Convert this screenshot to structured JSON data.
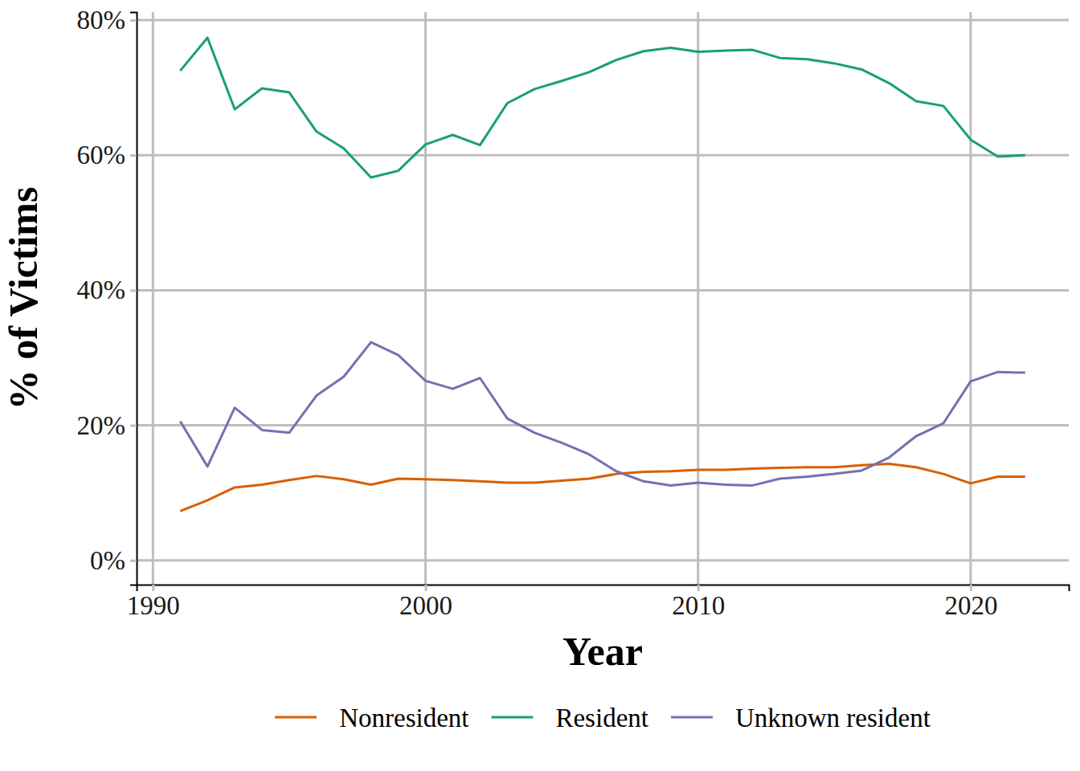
{
  "chart_data": {
    "type": "line",
    "x_label": "Year",
    "y_label": "% of Victims",
    "x": [
      1991,
      1992,
      1993,
      1994,
      1995,
      1996,
      1997,
      1998,
      1999,
      2000,
      2001,
      2002,
      2003,
      2004,
      2005,
      2006,
      2007,
      2008,
      2009,
      2010,
      2011,
      2012,
      2013,
      2014,
      2015,
      2016,
      2017,
      2018,
      2019,
      2020,
      2021,
      2022
    ],
    "series": [
      {
        "name": "Nonresident",
        "color": "#d95f02",
        "values": [
          7.3,
          8.9,
          10.8,
          11.2,
          11.9,
          12.5,
          12.0,
          11.2,
          12.1,
          12.0,
          11.9,
          11.7,
          11.5,
          11.5,
          11.8,
          12.1,
          12.8,
          13.1,
          13.2,
          13.4,
          13.4,
          13.6,
          13.7,
          13.8,
          13.8,
          14.1,
          14.3,
          13.8,
          12.8,
          11.4,
          12.4,
          12.4
        ]
      },
      {
        "name": "Resident",
        "color": "#1b9e77",
        "values": [
          72.5,
          77.4,
          66.8,
          69.9,
          69.3,
          63.5,
          61.0,
          56.7,
          57.7,
          61.6,
          63.0,
          61.5,
          67.7,
          69.8,
          71.0,
          72.3,
          74.1,
          75.4,
          75.9,
          75.3,
          75.5,
          75.6,
          74.4,
          74.2,
          73.6,
          72.7,
          70.7,
          68.0,
          67.3,
          62.3,
          59.8,
          60.0
        ]
      },
      {
        "name": "Unknown resident",
        "color": "#7570b3",
        "values": [
          20.6,
          13.9,
          22.6,
          19.3,
          18.9,
          24.4,
          27.2,
          32.3,
          30.4,
          26.6,
          25.4,
          27.0,
          21.0,
          18.9,
          17.4,
          15.7,
          13.2,
          11.7,
          11.1,
          11.5,
          11.2,
          11.1,
          12.1,
          12.4,
          12.8,
          13.3,
          15.2,
          18.4,
          20.3,
          26.5,
          27.9,
          27.8
        ]
      }
    ],
    "xlim": [
      1989.4,
      2023.6
    ],
    "xticks": [
      1990,
      2000,
      2010,
      2020
    ],
    "ylim": [
      -3.6,
      81.2
    ],
    "yticks": [
      {
        "value": 0,
        "label": "0%"
      },
      {
        "value": 20,
        "label": "20%"
      },
      {
        "value": 40,
        "label": "40%"
      },
      {
        "value": 60,
        "label": "60%"
      },
      {
        "value": 80,
        "label": "80%"
      }
    ],
    "grid": true,
    "legend": "bottom"
  }
}
